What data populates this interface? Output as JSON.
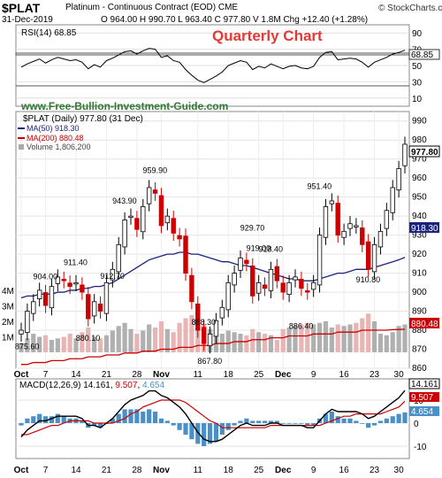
{
  "header": {
    "symbol": "$PLAT",
    "description": "Platinum - Continuous Contract (EOD)",
    "exchange": "CME",
    "date": "31-Dec-2019",
    "ohlc_line": "O 964.00  H 990.70  L 963.40  C 977.80  V 1.8M  Chg +12.40 (+1.28%)",
    "brand": "© StockCharts.com"
  },
  "overlay": {
    "quarterly_chart": "Quarterly Chart",
    "website": "www.Free-Bullion-Investment-Guide.com"
  },
  "rsi": {
    "label": "RSI(14) 68.85",
    "value_tag": "68.85",
    "ticks": [
      "90",
      "70",
      "50",
      "30",
      "10"
    ]
  },
  "price_legend": {
    "main": "$PLAT (Daily) 977.80 (31 Dec)",
    "ma50": "MA(50) 918.30",
    "ma200": "MA(200) 880.48",
    "volume": "Volume 1,806,200"
  },
  "price_ticks": [
    "990",
    "980",
    "970",
    "960",
    "950",
    "940",
    "930",
    "920",
    "910",
    "900",
    "890",
    "880",
    "870",
    "860"
  ],
  "price_tags": {
    "close": "977.80",
    "ma50": "918.30",
    "ma200": "880.48"
  },
  "volume_ticks": [
    "4M",
    "3M",
    "2M",
    "1M"
  ],
  "annotations": [
    "904.00",
    "875.60",
    "911.40",
    "880.10",
    "943.90",
    "912.70",
    "959.90",
    "867.80",
    "929.70",
    "888.30",
    "919.00",
    "918.40",
    "886.40",
    "951.40",
    "910.80"
  ],
  "macd": {
    "label_prefix": "MACD(12,26,9)",
    "macd_value": "14.161",
    "signal_value": "9.507",
    "hist_value": "4.654",
    "ticks": [
      "10",
      "0",
      "-10"
    ]
  },
  "x_labels": [
    "Oct",
    "7",
    "14",
    "21",
    "28",
    "Nov",
    "11",
    "18",
    "25",
    "Dec",
    "9",
    "16",
    "23",
    "30"
  ],
  "colors": {
    "up": "#00aa00",
    "down": "#cc0000",
    "ma50": "#1a237e",
    "ma200": "#cc0000",
    "macd": "#000000",
    "signal": "#cc0000",
    "hist": "#4a90c8",
    "volume": "#b0b0b0",
    "title_red": "#e53935",
    "site_green": "#2e7d32"
  },
  "chart_data": {
    "type": "line",
    "title": "$PLAT (Daily) 977.80 (31 Dec)",
    "x": [
      "Oct 1",
      "Oct 2",
      "Oct 3",
      "Oct 4",
      "Oct 7",
      "Oct 8",
      "Oct 9",
      "Oct 10",
      "Oct 11",
      "Oct 14",
      "Oct 15",
      "Oct 16",
      "Oct 17",
      "Oct 18",
      "Oct 21",
      "Oct 22",
      "Oct 23",
      "Oct 24",
      "Oct 25",
      "Oct 28",
      "Oct 29",
      "Oct 30",
      "Oct 31",
      "Nov 1",
      "Nov 4",
      "Nov 5",
      "Nov 6",
      "Nov 7",
      "Nov 8",
      "Nov 11",
      "Nov 12",
      "Nov 13",
      "Nov 14",
      "Nov 15",
      "Nov 18",
      "Nov 19",
      "Nov 20",
      "Nov 21",
      "Nov 22",
      "Nov 25",
      "Nov 26",
      "Nov 27",
      "Nov 29",
      "Dec 2",
      "Dec 3",
      "Dec 4",
      "Dec 5",
      "Dec 6",
      "Dec 9",
      "Dec 10",
      "Dec 11",
      "Dec 12",
      "Dec 13",
      "Dec 16",
      "Dec 17",
      "Dec 18",
      "Dec 19",
      "Dec 20",
      "Dec 23",
      "Dec 24",
      "Dec 26",
      "Dec 27",
      "Dec 30",
      "Dec 31"
    ],
    "ylim": [
      860,
      995
    ],
    "series": [
      {
        "name": "$PLAT",
        "values": [
          880,
          890,
          895,
          901,
          893,
          903,
          908,
          906,
          903,
          905,
          900,
          886,
          895,
          890,
          905,
          912,
          925,
          938,
          940,
          933,
          945,
          955,
          952,
          935,
          940,
          931,
          928,
          910,
          895,
          880,
          873,
          878,
          885,
          892,
          905,
          910,
          918,
          915,
          898,
          905,
          902,
          912,
          906,
          900,
          905,
          908,
          902,
          900,
          905,
          930,
          945,
          948,
          930,
          932,
          936,
          935,
          925,
          912,
          925,
          932,
          943,
          955,
          965,
          977.8
        ]
      },
      {
        "name": "MA(50)",
        "values": [
          897,
          898,
          898,
          899,
          899,
          899,
          900,
          900,
          901,
          901,
          902,
          902,
          903,
          903,
          904,
          905,
          907,
          909,
          911,
          913,
          915,
          917,
          918,
          919,
          920,
          920,
          921,
          921,
          920,
          920,
          919,
          918,
          917,
          916,
          916,
          915,
          914,
          914,
          913,
          912,
          911,
          910,
          909,
          908,
          907,
          907,
          906,
          906,
          906,
          907,
          908,
          909,
          910,
          910,
          911,
          912,
          912,
          912,
          913,
          914,
          915,
          916,
          917,
          918.3
        ]
      },
      {
        "name": "MA(200)",
        "values": [
          862,
          862,
          863,
          863,
          863,
          864,
          864,
          864,
          865,
          865,
          865,
          866,
          866,
          866,
          867,
          867,
          867,
          868,
          868,
          868,
          869,
          869,
          869,
          870,
          870,
          870,
          871,
          871,
          871,
          872,
          872,
          872,
          873,
          873,
          873,
          874,
          874,
          874,
          875,
          875,
          875,
          876,
          876,
          876,
          877,
          877,
          877,
          877,
          878,
          878,
          878,
          878,
          879,
          879,
          879,
          879,
          880,
          880,
          880,
          880,
          880,
          880.3,
          880.4,
          880.48
        ]
      },
      {
        "name": "RSI(14)",
        "values": [
          48,
          52,
          55,
          58,
          53,
          57,
          60,
          58,
          56,
          57,
          54,
          46,
          51,
          48,
          56,
          59,
          63,
          67,
          68,
          64,
          68,
          71,
          70,
          60,
          62,
          56,
          54,
          45,
          38,
          32,
          29,
          33,
          37,
          42,
          50,
          53,
          56,
          54,
          45,
          49,
          47,
          52,
          49,
          46,
          49,
          50,
          47,
          46,
          49,
          60,
          66,
          67,
          57,
          58,
          59,
          58,
          54,
          48,
          54,
          57,
          60,
          64,
          66,
          68.85
        ]
      },
      {
        "name": "MACD",
        "values": [
          -6,
          -3,
          -1,
          1,
          1,
          2,
          3,
          3,
          3,
          3,
          2,
          -1,
          -1,
          -2,
          0,
          2,
          5,
          8,
          10,
          11,
          12,
          14,
          14,
          12,
          11,
          9,
          7,
          4,
          0,
          -4,
          -7,
          -8,
          -8,
          -7,
          -5,
          -3,
          -1,
          0,
          -1,
          -1,
          -1,
          0,
          0,
          -1,
          -1,
          -1,
          -1,
          -2,
          -2,
          1,
          4,
          6,
          5,
          5,
          5,
          5,
          4,
          2,
          3,
          5,
          7,
          9,
          11,
          14.161
        ]
      },
      {
        "name": "Signal",
        "values": [
          -5,
          -5,
          -4,
          -3,
          -2,
          -1,
          -1,
          0,
          1,
          1,
          1,
          1,
          0,
          0,
          0,
          0,
          1,
          2,
          4,
          5,
          7,
          8,
          9,
          10,
          10,
          10,
          10,
          9,
          7,
          5,
          3,
          1,
          0,
          -2,
          -2,
          -2,
          -2,
          -2,
          -2,
          -2,
          -2,
          -1,
          -1,
          -1,
          -1,
          -1,
          -1,
          -1,
          -1,
          -1,
          0,
          1,
          2,
          3,
          3,
          4,
          4,
          4,
          4,
          4,
          5,
          6,
          7,
          9.507
        ]
      }
    ]
  }
}
